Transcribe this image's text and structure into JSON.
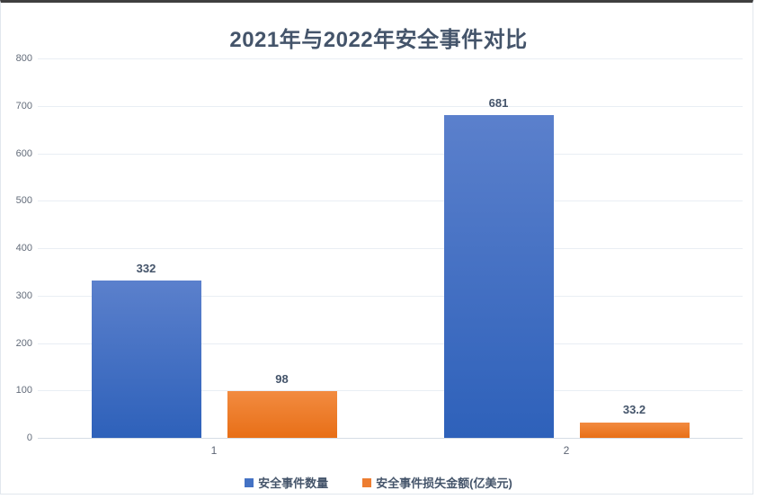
{
  "chart_data": {
    "type": "bar",
    "title": "2021年与2022年安全事件对比",
    "categories": [
      "1",
      "2"
    ],
    "series": [
      {
        "name": "安全事件数量",
        "values": [
          332,
          681
        ],
        "labels": [
          "332",
          "681"
        ],
        "color": "#4472c4",
        "gradient_top": "#5b80cc",
        "gradient_bottom": "#2e61ba"
      },
      {
        "name": "安全事件损失金额(亿美元)",
        "values": [
          98,
          33.2
        ],
        "labels": [
          "98",
          "33.2"
        ],
        "color": "#ed7d31",
        "gradient_top": "#f28b40",
        "gradient_bottom": "#e86f17"
      }
    ],
    "ylim": [
      0,
      800
    ],
    "yticks": [
      0,
      100,
      200,
      300,
      400,
      500,
      600,
      700,
      800
    ],
    "grid": true,
    "legend_position": "bottom"
  },
  "colors": {
    "title_text": "#44546a",
    "tick_text": "#636c7a",
    "gridline": "#e9eef4",
    "axis_line": "#d6dde5",
    "frame_border": "#e2e7ed",
    "top_bar": "#3f3f3f",
    "background": "#ffffff"
  }
}
